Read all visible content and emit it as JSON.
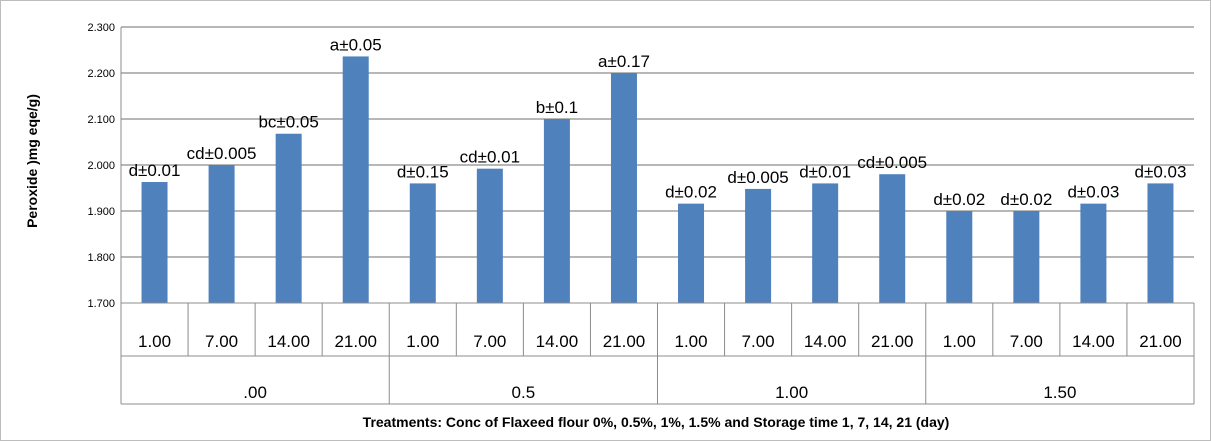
{
  "chart_data": {
    "type": "bar",
    "title": "",
    "ylabel": "Peroxide )mg eqe/g)",
    "xlabel": "Treatments:  Conc of Flaxeed flour 0%, 0.5%, 1%, 1.5%  and Storage time 1, 7, 14, 21 (day)",
    "ylim": [
      1.7,
      2.3
    ],
    "yticks": [
      "1.700",
      "1.800",
      "1.900",
      "2.000",
      "2.100",
      "2.200",
      "2.300"
    ],
    "grid": true,
    "legend": "none",
    "bar_color": "#4f81bd",
    "groups": [
      {
        "label": ".00",
        "categories": [
          "1.00",
          "7.00",
          "14.00",
          "21.00"
        ],
        "values": [
          1.963,
          2.0,
          2.068,
          2.236
        ],
        "labels": [
          "d±0.01",
          "cd±0.005",
          "bc±0.05",
          "a±0.05"
        ]
      },
      {
        "label": "0.5",
        "categories": [
          "1.00",
          "7.00",
          "14.00",
          "21.00"
        ],
        "values": [
          1.96,
          1.992,
          2.1,
          2.2
        ],
        "labels": [
          "d±0.15",
          "cd±0.01",
          "b±0.1",
          "a±0.17"
        ]
      },
      {
        "label": "1.00",
        "categories": [
          "1.00",
          "7.00",
          "14.00",
          "21.00"
        ],
        "values": [
          1.916,
          1.948,
          1.96,
          1.98
        ],
        "labels": [
          "d±0.02",
          "d±0.005",
          "d±0.01",
          "cd±0.005"
        ]
      },
      {
        "label": "1.50",
        "categories": [
          "1.00",
          "7.00",
          "14.00",
          "21.00"
        ],
        "values": [
          1.9,
          1.9,
          1.916,
          1.96
        ],
        "labels": [
          "d±0.02",
          "d±0.02",
          "d±0.03",
          "d±0.03"
        ]
      }
    ]
  }
}
